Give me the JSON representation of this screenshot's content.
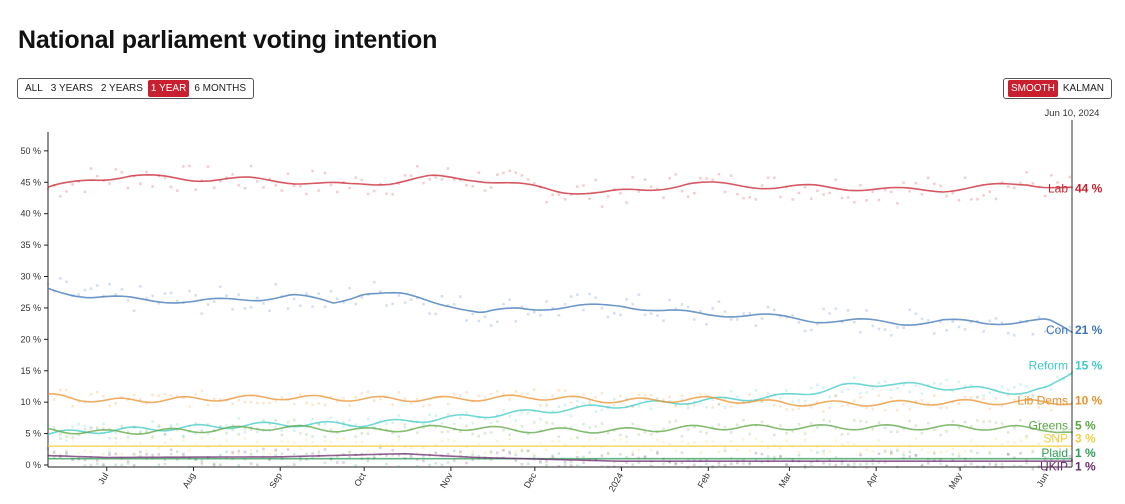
{
  "page": {
    "title": "National parliament voting intention"
  },
  "controls": {
    "range_buttons": [
      {
        "label": "ALL",
        "active": false
      },
      {
        "label": "3 YEARS",
        "active": false
      },
      {
        "label": "2 YEARS",
        "active": false
      },
      {
        "label": "1 YEAR",
        "active": true
      },
      {
        "label": "6 MONTHS",
        "active": false
      }
    ],
    "method_buttons": [
      {
        "label": "SMOOTH",
        "active": true
      },
      {
        "label": "KALMAN",
        "active": false
      }
    ],
    "active_color": "#c8202f"
  },
  "chart_data": {
    "type": "line",
    "title": "National parliament voting intention",
    "date_marker": "Jun 10, 2024",
    "x_range": [
      "2023-06-10",
      "2024-06-10"
    ],
    "x_ticks": [
      {
        "date": "2023-07-01",
        "label": "Jul"
      },
      {
        "date": "2023-08-01",
        "label": "Aug"
      },
      {
        "date": "2023-09-01",
        "label": "Sep"
      },
      {
        "date": "2023-10-01",
        "label": "Oct"
      },
      {
        "date": "2023-11-01",
        "label": "Nov"
      },
      {
        "date": "2023-12-01",
        "label": "Dec"
      },
      {
        "date": "2024-01-01",
        "label": "2024"
      },
      {
        "date": "2024-02-01",
        "label": "Feb"
      },
      {
        "date": "2024-03-01",
        "label": "Mar"
      },
      {
        "date": "2024-04-01",
        "label": "Apr"
      },
      {
        "date": "2024-05-01",
        "label": "May"
      },
      {
        "date": "2024-06-01",
        "label": "Jun"
      }
    ],
    "ylim": [
      0,
      53
    ],
    "y_ticks": [
      {
        "value": 0,
        "label": "0 %"
      },
      {
        "value": 5,
        "label": "5 %"
      },
      {
        "value": 10,
        "label": "10 %"
      },
      {
        "value": 15,
        "label": "15 %"
      },
      {
        "value": 20,
        "label": "20 %"
      },
      {
        "value": 25,
        "label": "25 %"
      },
      {
        "value": 30,
        "label": "30 %"
      },
      {
        "value": 35,
        "label": "35 %"
      },
      {
        "value": 40,
        "label": "40 %"
      },
      {
        "value": 45,
        "label": "45 %"
      },
      {
        "value": 50,
        "label": "50 %"
      }
    ],
    "series": [
      {
        "name": "Lab",
        "end_label": "44 %",
        "color": "#c8202f",
        "last": 44,
        "label_y": 44,
        "points": [
          [
            "2023-06-10",
            44
          ],
          [
            "2023-06-25",
            45.5
          ],
          [
            "2023-07-10",
            46
          ],
          [
            "2023-08-01",
            45.5
          ],
          [
            "2023-08-20",
            45.5
          ],
          [
            "2023-09-10",
            45
          ],
          [
            "2023-09-25",
            44.5
          ],
          [
            "2023-10-10",
            45
          ],
          [
            "2023-10-25",
            45.8
          ],
          [
            "2023-11-10",
            45.5
          ],
          [
            "2023-11-25",
            44.6
          ],
          [
            "2023-12-10",
            43.6
          ],
          [
            "2023-12-25",
            43.3
          ],
          [
            "2024-01-10",
            43.8
          ],
          [
            "2024-01-25",
            44.8
          ],
          [
            "2024-02-10",
            44.6
          ],
          [
            "2024-02-25",
            44.2
          ],
          [
            "2024-03-10",
            44.3
          ],
          [
            "2024-03-25",
            44
          ],
          [
            "2024-04-10",
            43.8
          ],
          [
            "2024-04-25",
            43.8
          ],
          [
            "2024-05-10",
            44.3
          ],
          [
            "2024-05-25",
            44.8
          ],
          [
            "2024-06-10",
            44
          ]
        ]
      },
      {
        "name": "Con",
        "end_label": "21 %",
        "color": "#3b74b5",
        "last": 21,
        "label_y": 21.5,
        "points": [
          [
            "2023-06-10",
            28
          ],
          [
            "2023-06-25",
            26.8
          ],
          [
            "2023-07-15",
            26.3
          ],
          [
            "2023-08-01",
            26
          ],
          [
            "2023-08-25",
            26.5
          ],
          [
            "2023-09-05",
            27
          ],
          [
            "2023-09-20",
            25.8
          ],
          [
            "2023-10-01",
            27.5
          ],
          [
            "2023-10-15",
            27
          ],
          [
            "2023-11-01",
            25.5
          ],
          [
            "2023-11-12",
            24
          ],
          [
            "2023-11-25",
            25
          ],
          [
            "2023-12-10",
            25
          ],
          [
            "2024-01-01",
            25.5
          ],
          [
            "2024-01-15",
            24.5
          ],
          [
            "2024-02-01",
            24
          ],
          [
            "2024-02-20",
            23.8
          ],
          [
            "2024-03-10",
            23
          ],
          [
            "2024-03-25",
            23
          ],
          [
            "2024-04-10",
            22.5
          ],
          [
            "2024-04-25",
            23
          ],
          [
            "2024-05-10",
            22.5
          ],
          [
            "2024-05-25",
            23
          ],
          [
            "2024-06-01",
            23
          ],
          [
            "2024-06-10",
            21
          ]
        ]
      },
      {
        "name": "Reform",
        "end_label": "15 %",
        "color": "#3fc9c4",
        "last": 15,
        "label_y": 15.8,
        "points": [
          [
            "2023-06-10",
            5
          ],
          [
            "2023-07-01",
            5.5
          ],
          [
            "2023-08-01",
            6
          ],
          [
            "2023-09-01",
            6.5
          ],
          [
            "2023-10-01",
            6.5
          ],
          [
            "2023-11-01",
            7.5
          ],
          [
            "2023-12-01",
            8.5
          ],
          [
            "2024-01-01",
            9.5
          ],
          [
            "2024-01-20",
            10
          ],
          [
            "2024-02-10",
            10.5
          ],
          [
            "2024-03-01",
            11
          ],
          [
            "2024-03-20",
            12.5
          ],
          [
            "2024-04-05",
            13
          ],
          [
            "2024-04-20",
            12.5
          ],
          [
            "2024-05-10",
            12
          ],
          [
            "2024-05-25",
            11.5
          ],
          [
            "2024-06-01",
            12
          ],
          [
            "2024-06-10",
            15
          ]
        ]
      },
      {
        "name": "Lib Dems",
        "end_label": "10 %",
        "color": "#e8912f",
        "last": 10,
        "label_y": 10.3,
        "points": [
          [
            "2023-06-10",
            11
          ],
          [
            "2023-07-01",
            10.2
          ],
          [
            "2023-08-01",
            10.5
          ],
          [
            "2023-09-01",
            10.8
          ],
          [
            "2023-10-01",
            10.5
          ],
          [
            "2023-11-01",
            10.5
          ],
          [
            "2023-12-01",
            10.8
          ],
          [
            "2024-01-01",
            10.2
          ],
          [
            "2024-02-01",
            10.5
          ],
          [
            "2024-03-01",
            9.8
          ],
          [
            "2024-04-01",
            9.8
          ],
          [
            "2024-05-01",
            10
          ],
          [
            "2024-06-01",
            10
          ],
          [
            "2024-06-10",
            10
          ]
        ]
      },
      {
        "name": "Greens",
        "end_label": "5 %",
        "color": "#5aa642",
        "last": 5,
        "label_y": 6.3,
        "points": [
          [
            "2023-06-10",
            5.5
          ],
          [
            "2023-07-01",
            5.2
          ],
          [
            "2023-08-01",
            5.5
          ],
          [
            "2023-09-01",
            6
          ],
          [
            "2023-10-01",
            5.5
          ],
          [
            "2023-11-01",
            6
          ],
          [
            "2023-12-01",
            5.5
          ],
          [
            "2024-01-01",
            5.5
          ],
          [
            "2024-02-01",
            6
          ],
          [
            "2024-03-01",
            6
          ],
          [
            "2024-04-01",
            6
          ],
          [
            "2024-05-01",
            6
          ],
          [
            "2024-06-01",
            5.8
          ],
          [
            "2024-06-10",
            5
          ]
        ]
      },
      {
        "name": "SNP",
        "end_label": "3 %",
        "color": "#f2cf45",
        "last": 3,
        "label_y": 4.2,
        "points": [
          [
            "2023-06-10",
            3
          ],
          [
            "2023-09-01",
            3
          ],
          [
            "2023-12-01",
            3
          ],
          [
            "2024-03-01",
            3
          ],
          [
            "2024-06-10",
            3
          ]
        ]
      },
      {
        "name": "Plaid",
        "end_label": "1 %",
        "color": "#2e9a57",
        "last": 1,
        "label_y": 1.9,
        "points": [
          [
            "2023-06-10",
            1
          ],
          [
            "2023-12-01",
            1
          ],
          [
            "2024-06-10",
            1
          ]
        ]
      },
      {
        "name": "UKIP",
        "end_label": "1 %",
        "color": "#6a2a6b",
        "last": 1,
        "label_y": -0.2,
        "points": [
          [
            "2023-06-10",
            1.5
          ],
          [
            "2023-07-01",
            1.2
          ],
          [
            "2023-09-01",
            1.3
          ],
          [
            "2023-10-15",
            1.8
          ],
          [
            "2023-11-10",
            1.2
          ],
          [
            "2024-01-01",
            0.6
          ],
          [
            "2024-06-10",
            0.6
          ]
        ]
      }
    ]
  }
}
